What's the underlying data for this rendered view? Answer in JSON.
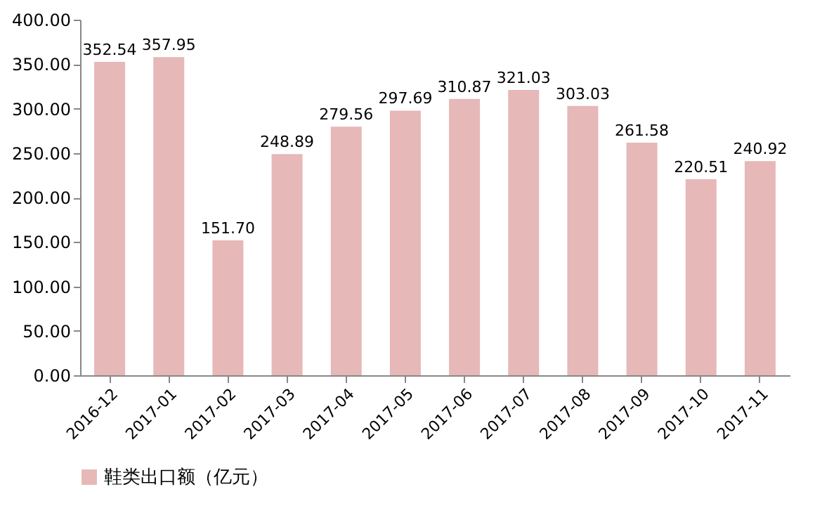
{
  "chart_data": {
    "type": "bar",
    "categories": [
      "2016-12",
      "2017-01",
      "2017-02",
      "2017-03",
      "2017-04",
      "2017-05",
      "2017-06",
      "2017-07",
      "2017-08",
      "2017-09",
      "2017-10",
      "2017-11"
    ],
    "series": [
      {
        "name": "鞋类出口额（亿元）",
        "color": "#e6b8b7",
        "values": [
          352.54,
          357.95,
          151.7,
          248.89,
          279.56,
          297.69,
          310.87,
          321.03,
          303.03,
          261.58,
          220.51,
          240.92
        ],
        "value_labels": [
          "352.54",
          "357.95",
          "151.70",
          "248.89",
          "279.56",
          "297.69",
          "310.87",
          "321.03",
          "303.03",
          "261.58",
          "220.51",
          "240.92"
        ]
      }
    ],
    "ylim": [
      0,
      400
    ],
    "yticks": [
      {
        "value": 0,
        "label": "0.00"
      },
      {
        "value": 50,
        "label": "50.00"
      },
      {
        "value": 100,
        "label": "100.00"
      },
      {
        "value": 150,
        "label": "150.00"
      },
      {
        "value": 200,
        "label": "200.00"
      },
      {
        "value": 250,
        "label": "250.00"
      },
      {
        "value": 300,
        "label": "300.00"
      },
      {
        "value": 350,
        "label": "350.00"
      },
      {
        "value": 400,
        "label": "400.00"
      }
    ],
    "grid": false,
    "legend": "bottom"
  }
}
